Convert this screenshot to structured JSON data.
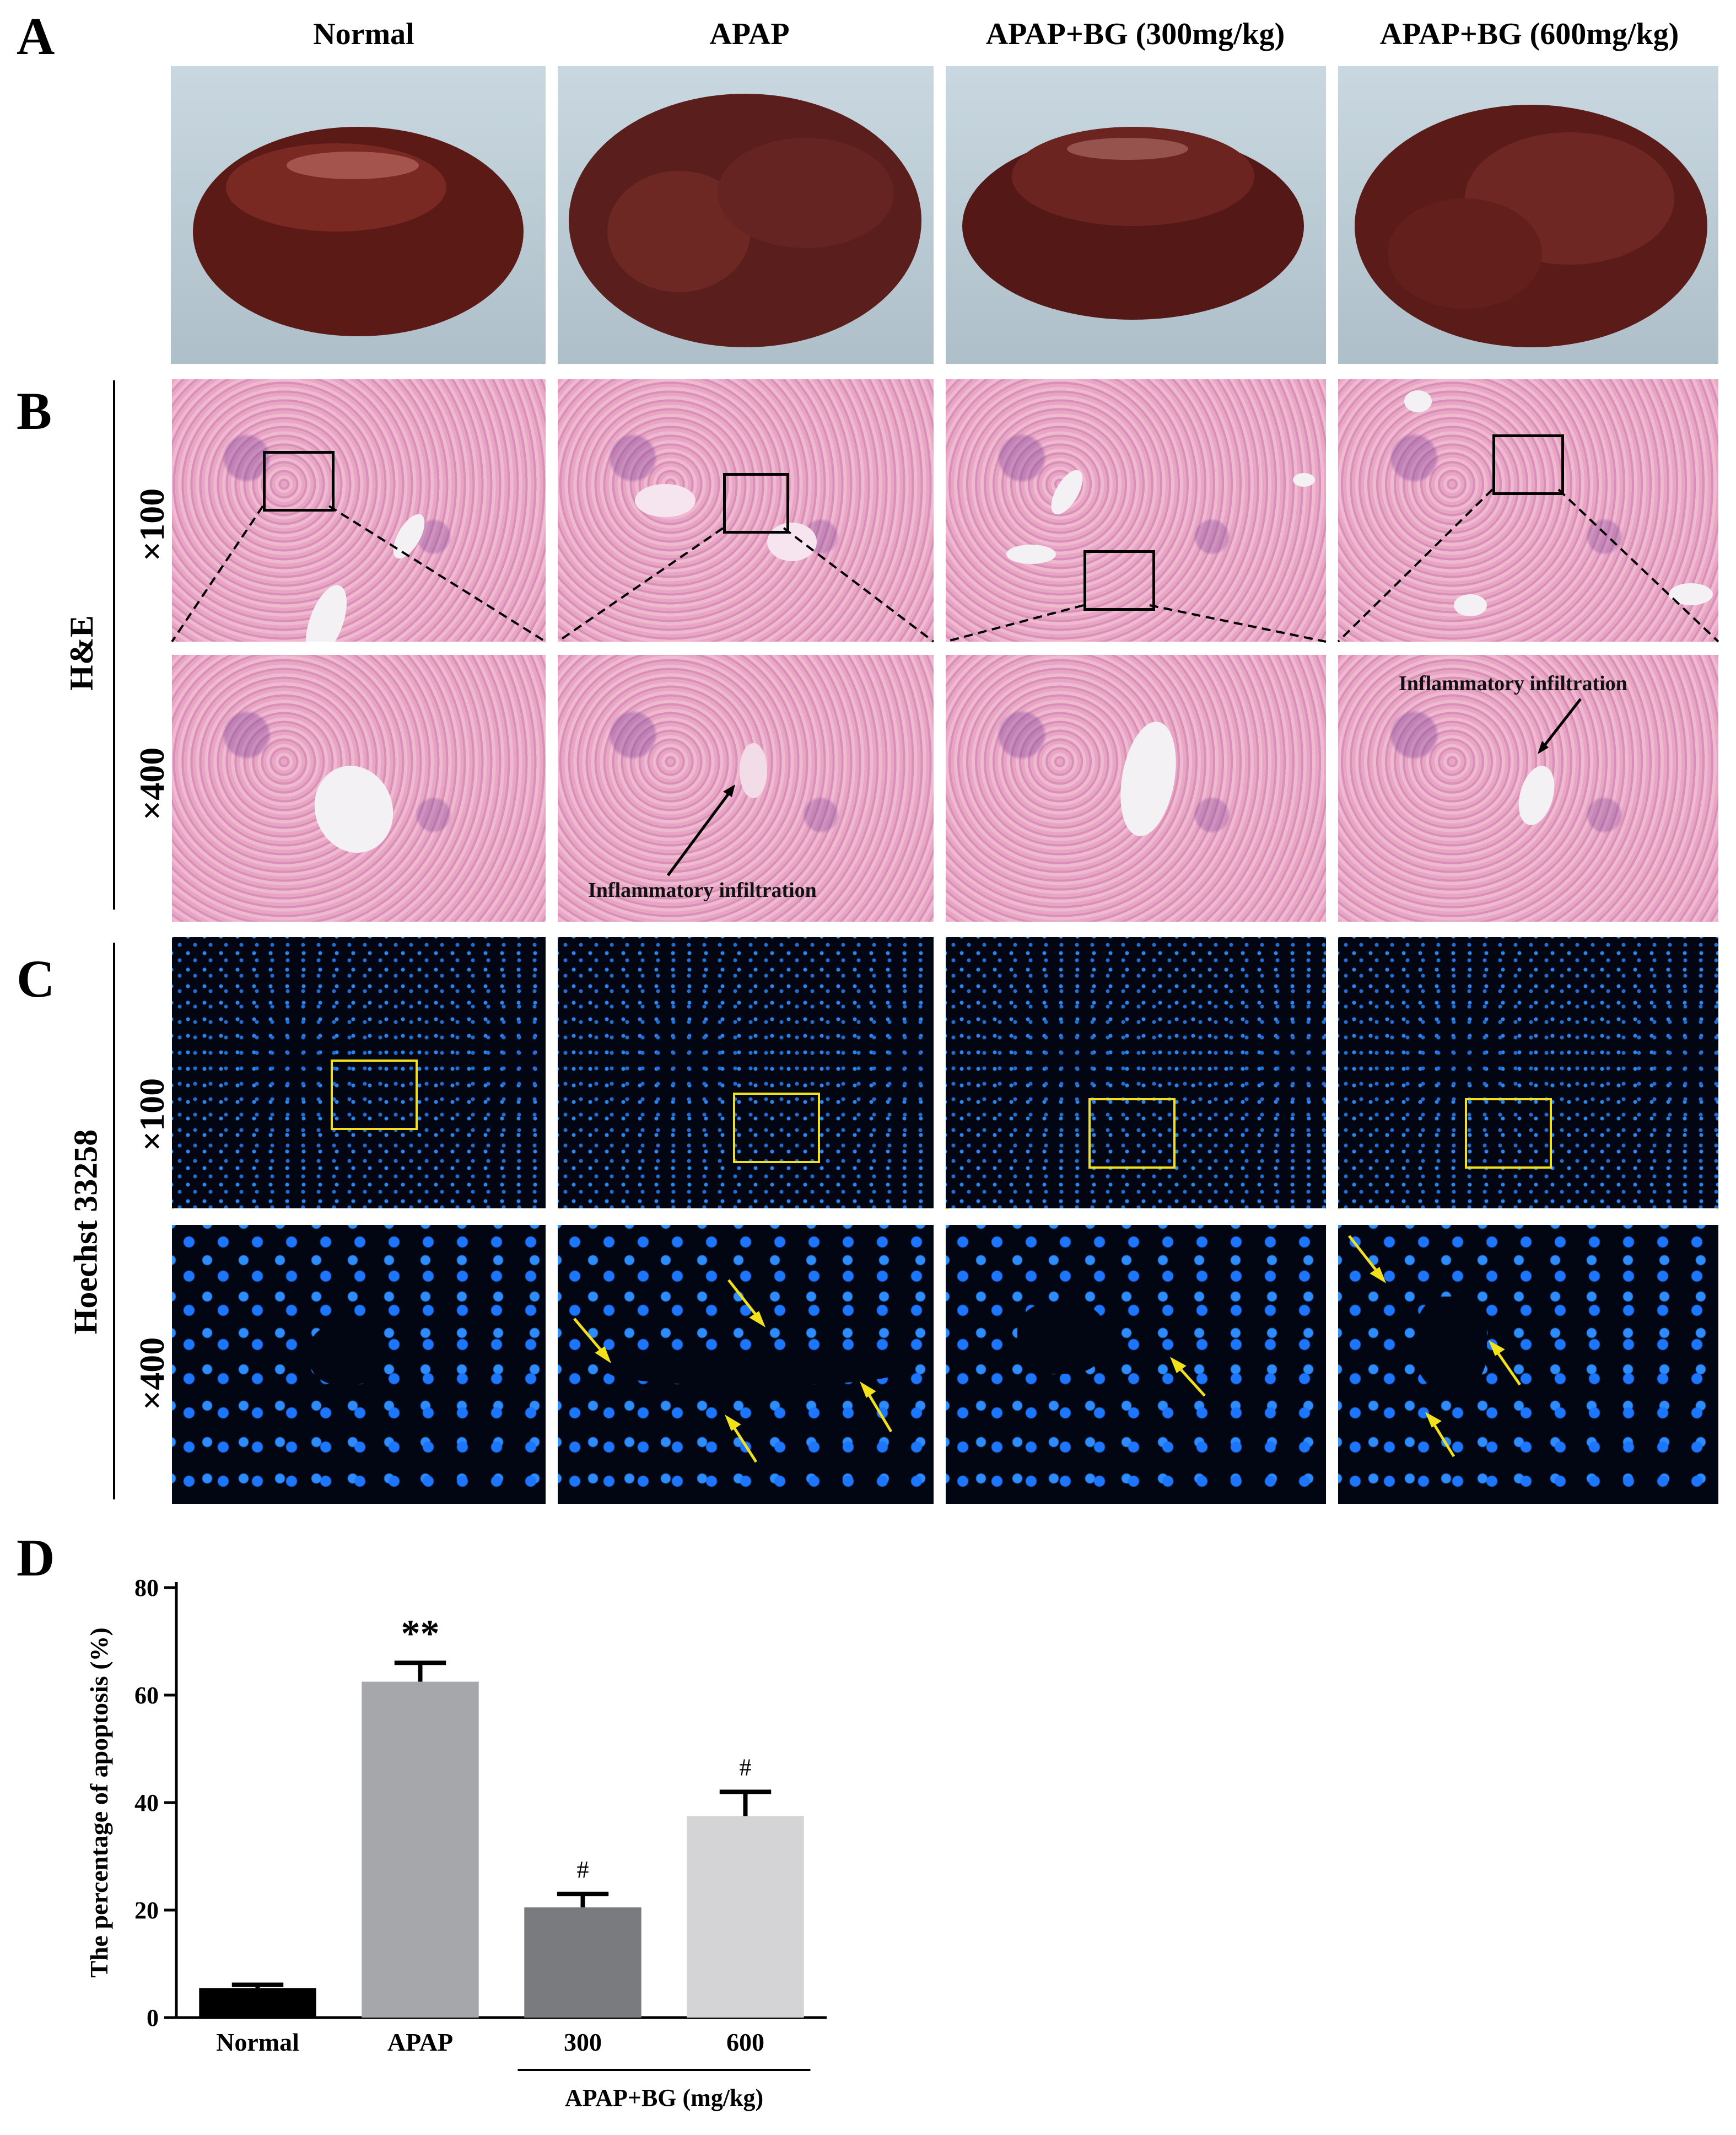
{
  "panels": {
    "a": "A",
    "b": "B",
    "c": "C",
    "d": "D"
  },
  "columns": [
    "Normal",
    "APAP",
    "APAP+BG (300mg/kg)",
    "APAP+BG (600mg/kg)"
  ],
  "row_labels": {
    "he": "H&E",
    "hoechst": "Hoechst 33258"
  },
  "magnifications": {
    "low": "×100",
    "high": "×400"
  },
  "annotations": {
    "infiltration": "Inflammatory  infiltration"
  },
  "colors": {
    "he_pink": "#e8a6c4",
    "hoechst_blue": "#1f6fd6",
    "zoom_box_yellow": "#f2e01a",
    "arrow_yellow": "#f2e01a"
  },
  "chart_data": {
    "type": "bar",
    "categories": [
      "Normal",
      "APAP",
      "300",
      "600"
    ],
    "values": [
      5.5,
      62.5,
      20.5,
      37.5
    ],
    "errors": [
      0.6,
      3.5,
      2.5,
      4.5
    ],
    "bar_colors": [
      "#000000",
      "#a6a7ab",
      "#7a7b7e",
      "#d4d4d6"
    ],
    "significance": [
      "",
      "**",
      "#",
      "#"
    ],
    "ylabel": "The percentage of apoptosis (%)",
    "group_label": "APAP+BG (mg/kg)",
    "ylim": [
      0,
      80
    ],
    "yticks": [
      0,
      20,
      40,
      60,
      80
    ]
  }
}
